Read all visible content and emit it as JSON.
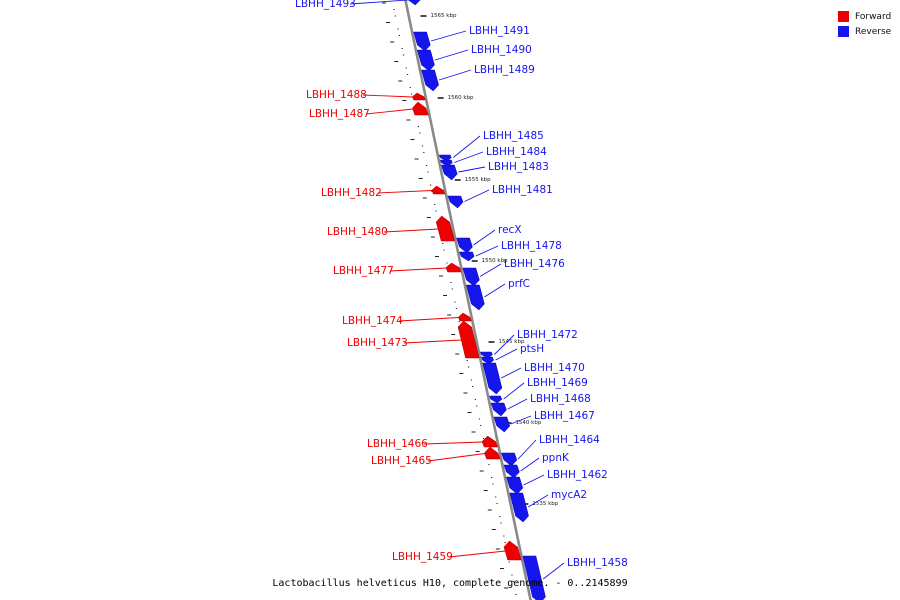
{
  "caption": "Lactobacillus helveticus H10, complete genome. - 0..2145899",
  "colors": {
    "forward": "#ee0000",
    "reverse": "#1515ee",
    "backbone": "#8a8a8a"
  },
  "legend": [
    {
      "label": "Forward",
      "color": "#ee0000"
    },
    {
      "label": "Reverse",
      "color": "#1515ee"
    }
  ],
  "scale": {
    "kbp_labels": [
      {
        "label": "1565 kbp",
        "pos": 1565
      },
      {
        "label": "1560 kbp",
        "pos": 1560
      },
      {
        "label": "1555 kbp",
        "pos": 1555
      },
      {
        "label": "1550 kbp",
        "pos": 1550
      },
      {
        "label": "1545 kbp",
        "pos": 1545
      },
      {
        "label": "1540 kbp",
        "pos": 1540
      },
      {
        "label": "1535 kbp",
        "pos": 1535
      }
    ]
  },
  "genes": [
    {
      "name": "LBHH_1493",
      "strand": "reverse"
    },
    {
      "name": "LBHH_1491",
      "strand": "reverse"
    },
    {
      "name": "LBHH_1490",
      "strand": "reverse"
    },
    {
      "name": "LBHH_1489",
      "strand": "reverse"
    },
    {
      "name": "LBHH_1488",
      "strand": "forward"
    },
    {
      "name": "LBHH_1487",
      "strand": "forward"
    },
    {
      "name": "LBHH_1485",
      "strand": "reverse"
    },
    {
      "name": "LBHH_1484",
      "strand": "reverse"
    },
    {
      "name": "LBHH_1483",
      "strand": "reverse"
    },
    {
      "name": "LBHH_1482",
      "strand": "forward"
    },
    {
      "name": "LBHH_1481",
      "strand": "reverse"
    },
    {
      "name": "LBHH_1480",
      "strand": "forward"
    },
    {
      "name": "recX",
      "strand": "reverse"
    },
    {
      "name": "LBHH_1478",
      "strand": "reverse"
    },
    {
      "name": "LBHH_1477",
      "strand": "forward"
    },
    {
      "name": "LBHH_1476",
      "strand": "reverse"
    },
    {
      "name": "prfC",
      "strand": "reverse"
    },
    {
      "name": "LBHH_1474",
      "strand": "forward"
    },
    {
      "name": "LBHH_1473",
      "strand": "forward"
    },
    {
      "name": "LBHH_1472",
      "strand": "reverse"
    },
    {
      "name": "ptsH",
      "strand": "reverse"
    },
    {
      "name": "LBHH_1470",
      "strand": "reverse"
    },
    {
      "name": "LBHH_1469",
      "strand": "reverse"
    },
    {
      "name": "LBHH_1468",
      "strand": "reverse"
    },
    {
      "name": "LBHH_1467",
      "strand": "reverse"
    },
    {
      "name": "LBHH_1466",
      "strand": "forward"
    },
    {
      "name": "LBHH_1465",
      "strand": "forward"
    },
    {
      "name": "LBHH_1464",
      "strand": "reverse"
    },
    {
      "name": "ppnK",
      "strand": "reverse"
    },
    {
      "name": "LBHH_1462",
      "strand": "reverse"
    },
    {
      "name": "mycA2",
      "strand": "reverse"
    },
    {
      "name": "LBHH_1459",
      "strand": "forward"
    },
    {
      "name": "LBHH_1458",
      "strand": "reverse"
    }
  ]
}
